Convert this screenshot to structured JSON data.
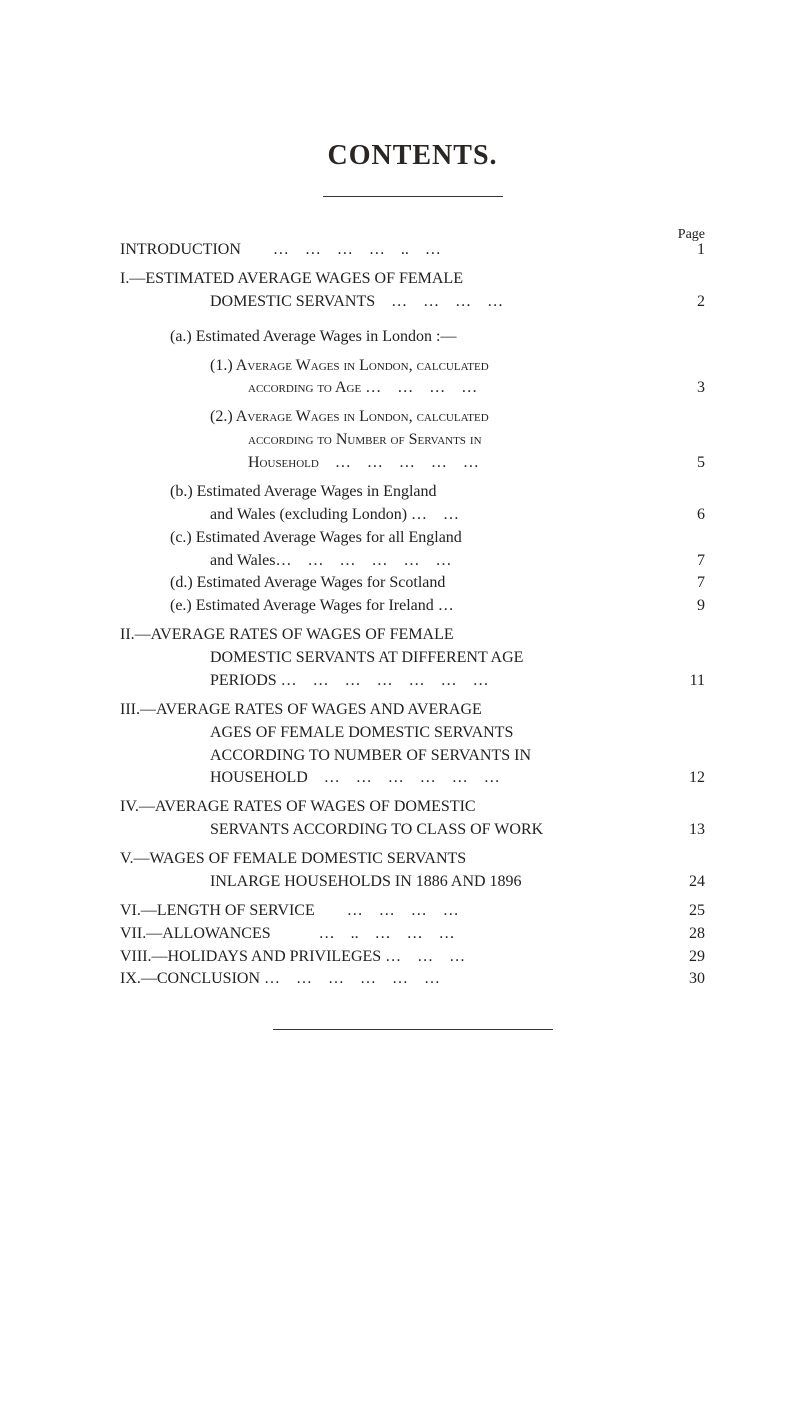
{
  "title": "CONTENTS.",
  "pageLabel": "Page",
  "colors": {
    "text": "#232020",
    "background": "#ffffff",
    "line": "#3a3530"
  },
  "fontsize": {
    "title": 28,
    "body": 16,
    "pageLabel": 14
  },
  "entries": {
    "intro": {
      "text": "INTRODUCTION  … … … … .. …",
      "page": "1"
    },
    "I": {
      "head": "I.—ESTIMATED AVERAGE WAGES OF FEMALE",
      "cont": "DOMESTIC SERVANTS … … … …",
      "page": "2"
    },
    "a": {
      "text": "(a.) Estimated Average Wages in London :—"
    },
    "a1": {
      "head": "(1.) Average Wages in London, calculated",
      "cont": "according to Age … … … …",
      "page": "3"
    },
    "a2": {
      "head": "(2.) Average Wages in London, calculated",
      "cont1": "according to Number of Servants in",
      "cont2": "Household … … … … …",
      "page": "5"
    },
    "b": {
      "head": "(b.) Estimated Average Wages in England",
      "cont": "and Wales (excluding London) … …",
      "page": "6"
    },
    "c": {
      "head": "(c.) Estimated Average Wages for all England",
      "cont": "and Wales… … … … … …",
      "page": "7"
    },
    "d": {
      "text": "(d.) Estimated Average Wages for Scotland",
      "page": "7"
    },
    "e": {
      "text": "(e.) Estimated Average Wages for Ireland …",
      "page": "9"
    },
    "II": {
      "head": "II.—AVERAGE RATES OF WAGES OF FEMALE",
      "cont1": "DOMESTIC SERVANTS AT DIFFERENT AGE",
      "cont2": "PERIODS … … … … … … …",
      "page": "11"
    },
    "III": {
      "head": "III.—AVERAGE RATES OF WAGES AND AVERAGE",
      "cont1": "AGES OF FEMALE DOMESTIC SERVANTS",
      "cont2": "ACCORDING TO NUMBER OF SERVANTS IN",
      "cont3": "HOUSEHOLD … … … … … …",
      "page": "12"
    },
    "IV": {
      "head": "IV.—AVERAGE RATES OF WAGES OF DOMESTIC",
      "cont": "SERVANTS ACCORDING TO CLASS OF WORK",
      "page": "13"
    },
    "V": {
      "head": "V.—WAGES OF FEMALE DOMESTIC SERVANTS",
      "cont": "INLARGE HOUSEHOLDS IN 1886 AND 1896",
      "page": "24"
    },
    "VI": {
      "text": "VI.—LENGTH OF SERVICE  … … … …",
      "page": "25"
    },
    "VII": {
      "text": "VII.—ALLOWANCES   … .. … … …",
      "page": "28"
    },
    "VIII": {
      "text": "VIII.—HOLIDAYS AND PRIVILEGES … … …",
      "page": "29"
    },
    "IX": {
      "text": "IX.—CONCLUSION … … … … … …",
      "page": "30"
    }
  }
}
